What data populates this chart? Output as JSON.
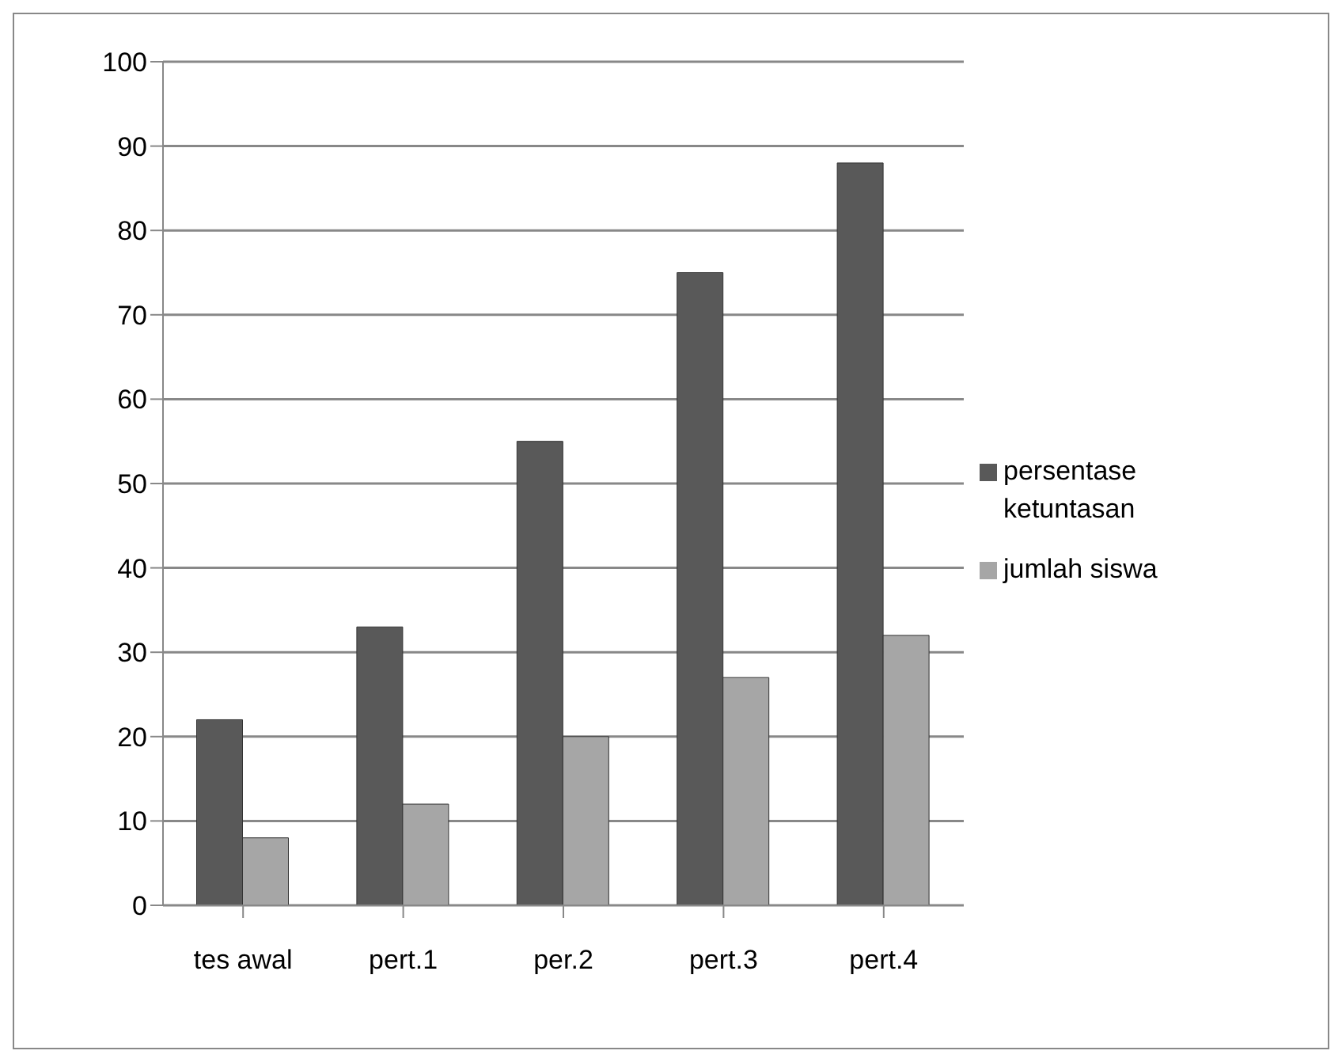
{
  "chart_data": {
    "type": "bar",
    "categories": [
      "tes awal",
      "pert.1",
      "per.2",
      "pert.3",
      "pert.4"
    ],
    "series": [
      {
        "name": "persentase ketuntasan",
        "color": "#595959",
        "values": [
          22,
          33,
          55,
          75,
          88
        ]
      },
      {
        "name": "jumlah siswa",
        "color": "#a6a6a6",
        "values": [
          8,
          12,
          20,
          27,
          32
        ]
      }
    ],
    "ylim": [
      0,
      100
    ],
    "yticks": [
      0,
      10,
      20,
      30,
      40,
      50,
      60,
      70,
      80,
      90,
      100
    ],
    "grid": "y",
    "legend": "right"
  }
}
